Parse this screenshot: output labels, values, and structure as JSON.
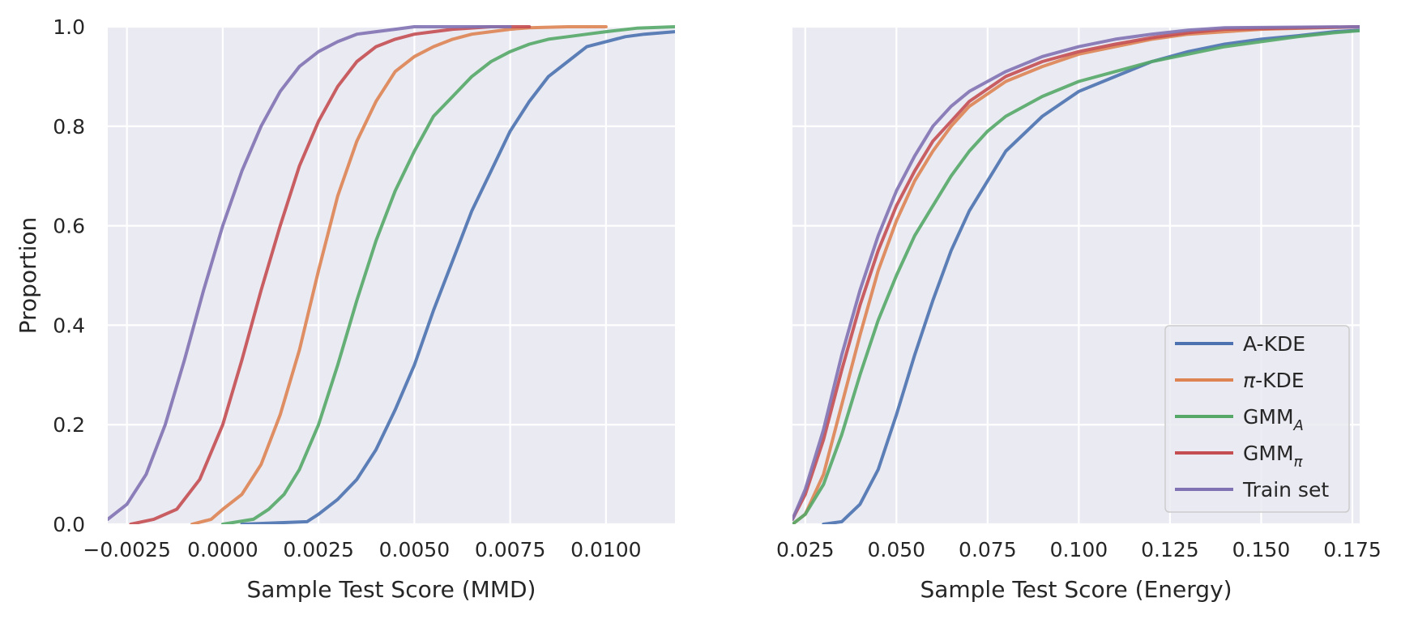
{
  "chart_data": [
    {
      "type": "line",
      "subtype": "ecdf",
      "xlabel": "Sample Test Score (MMD)",
      "ylabel": "Proportion",
      "xlim": [
        -0.003,
        0.0118
      ],
      "ylim": [
        0,
        1
      ],
      "xticks": [
        -0.0025,
        0.0,
        0.0025,
        0.005,
        0.0075,
        0.01
      ],
      "xtick_labels": [
        "−0.0025",
        "0.0000",
        "0.0025",
        "0.0050",
        "0.0075",
        "0.0100"
      ],
      "yticks": [
        0,
        0.2,
        0.4,
        0.6,
        0.8,
        1.0
      ],
      "ytick_labels": [
        "0.0",
        "0.2",
        "0.4",
        "0.6",
        "0.8",
        "1.0"
      ],
      "grid": true,
      "legend": false,
      "series": [
        {
          "name": "A-KDE",
          "color": "#4c72b0",
          "x": [
            0.0005,
            0.0022,
            0.0025,
            0.003,
            0.0035,
            0.004,
            0.0045,
            0.005,
            0.0055,
            0.006,
            0.0065,
            0.007,
            0.0075,
            0.008,
            0.0085,
            0.009,
            0.0095,
            0.01,
            0.0105,
            0.011,
            0.0118
          ],
          "y": [
            0.0,
            0.005,
            0.02,
            0.05,
            0.09,
            0.15,
            0.23,
            0.32,
            0.43,
            0.53,
            0.63,
            0.71,
            0.79,
            0.85,
            0.9,
            0.93,
            0.96,
            0.97,
            0.98,
            0.985,
            0.99
          ]
        },
        {
          "name": "π-KDE",
          "color": "#dd8452",
          "x": [
            -0.0008,
            -0.0003,
            0.0,
            0.0005,
            0.001,
            0.0015,
            0.002,
            0.0025,
            0.003,
            0.0035,
            0.004,
            0.0045,
            0.005,
            0.0055,
            0.006,
            0.0065,
            0.007,
            0.0075,
            0.008,
            0.009,
            0.01
          ],
          "y": [
            0.0,
            0.01,
            0.03,
            0.06,
            0.12,
            0.22,
            0.35,
            0.51,
            0.66,
            0.77,
            0.85,
            0.91,
            0.94,
            0.96,
            0.975,
            0.985,
            0.99,
            0.995,
            0.998,
            1.0,
            1.0
          ]
        },
        {
          "name": "GMM_A",
          "color": "#55a868",
          "x": [
            0.0,
            0.0008,
            0.0012,
            0.0016,
            0.002,
            0.0025,
            0.003,
            0.0035,
            0.004,
            0.0045,
            0.005,
            0.0055,
            0.006,
            0.0065,
            0.007,
            0.0075,
            0.008,
            0.0085,
            0.009,
            0.0095,
            0.01,
            0.0108,
            0.0118
          ],
          "y": [
            0.0,
            0.01,
            0.03,
            0.06,
            0.11,
            0.2,
            0.32,
            0.45,
            0.57,
            0.67,
            0.75,
            0.82,
            0.86,
            0.9,
            0.93,
            0.95,
            0.965,
            0.975,
            0.98,
            0.985,
            0.99,
            0.997,
            1.0
          ]
        },
        {
          "name": "GMM_π",
          "color": "#c44e52",
          "x": [
            -0.0024,
            -0.0018,
            -0.0012,
            -0.0006,
            0.0,
            0.0005,
            0.001,
            0.0015,
            0.002,
            0.0025,
            0.003,
            0.0035,
            0.004,
            0.0045,
            0.005,
            0.0055,
            0.006,
            0.007,
            0.008
          ],
          "y": [
            0.0,
            0.01,
            0.03,
            0.09,
            0.2,
            0.33,
            0.47,
            0.6,
            0.72,
            0.81,
            0.88,
            0.93,
            0.96,
            0.975,
            0.985,
            0.99,
            0.995,
            1.0,
            1.0
          ]
        },
        {
          "name": "Train set",
          "color": "#8172b3",
          "x": [
            -0.003,
            -0.0025,
            -0.002,
            -0.0015,
            -0.001,
            -0.0005,
            0.0,
            0.0005,
            0.001,
            0.0015,
            0.002,
            0.0025,
            0.003,
            0.0035,
            0.004,
            0.0045,
            0.005,
            0.006,
            0.0075
          ],
          "y": [
            0.01,
            0.04,
            0.1,
            0.2,
            0.33,
            0.47,
            0.6,
            0.71,
            0.8,
            0.87,
            0.92,
            0.95,
            0.97,
            0.985,
            0.99,
            0.995,
            1.0,
            1.0,
            1.0
          ]
        }
      ]
    },
    {
      "type": "line",
      "subtype": "ecdf",
      "xlabel": "Sample Test Score (Energy)",
      "ylabel": "",
      "xlim": [
        0.0215,
        0.177
      ],
      "ylim": [
        0,
        1
      ],
      "xticks": [
        0.025,
        0.05,
        0.075,
        0.1,
        0.125,
        0.15,
        0.175
      ],
      "xtick_labels": [
        "0.025",
        "0.050",
        "0.075",
        "0.100",
        "0.125",
        "0.150",
        "0.175"
      ],
      "yticks": [
        0,
        0.2,
        0.4,
        0.6,
        0.8,
        1.0
      ],
      "grid": true,
      "legend": true,
      "legend_location": "lower right",
      "legend_entries": [
        {
          "base": "A-KDE",
          "sub": "",
          "italic_prefix": ""
        },
        {
          "base": "-KDE",
          "sub": "",
          "italic_prefix": "π"
        },
        {
          "base": "GMM",
          "sub": "A",
          "italic_prefix": ""
        },
        {
          "base": "GMM",
          "sub": "π",
          "italic_prefix": ""
        },
        {
          "base": "Train set",
          "sub": "",
          "italic_prefix": ""
        }
      ],
      "series": [
        {
          "name": "A-KDE",
          "color": "#4c72b0",
          "x": [
            0.03,
            0.035,
            0.04,
            0.045,
            0.05,
            0.055,
            0.06,
            0.065,
            0.07,
            0.075,
            0.08,
            0.09,
            0.1,
            0.11,
            0.12,
            0.13,
            0.14,
            0.15,
            0.16,
            0.17,
            0.177
          ],
          "y": [
            0.0,
            0.005,
            0.04,
            0.11,
            0.22,
            0.34,
            0.45,
            0.55,
            0.63,
            0.69,
            0.75,
            0.82,
            0.87,
            0.9,
            0.93,
            0.95,
            0.965,
            0.975,
            0.982,
            0.99,
            0.993
          ]
        },
        {
          "name": "π-KDE",
          "color": "#dd8452",
          "x": [
            0.0215,
            0.025,
            0.03,
            0.035,
            0.04,
            0.045,
            0.05,
            0.055,
            0.06,
            0.065,
            0.07,
            0.08,
            0.09,
            0.1,
            0.11,
            0.12,
            0.13,
            0.14,
            0.15,
            0.177
          ],
          "y": [
            0.0,
            0.02,
            0.1,
            0.24,
            0.38,
            0.51,
            0.61,
            0.69,
            0.75,
            0.8,
            0.84,
            0.89,
            0.92,
            0.945,
            0.96,
            0.975,
            0.985,
            0.99,
            0.995,
            1.0
          ]
        },
        {
          "name": "GMM_A",
          "color": "#55a868",
          "x": [
            0.0215,
            0.025,
            0.03,
            0.035,
            0.04,
            0.045,
            0.05,
            0.055,
            0.06,
            0.065,
            0.07,
            0.075,
            0.08,
            0.09,
            0.1,
            0.11,
            0.12,
            0.13,
            0.14,
            0.15,
            0.16,
            0.17,
            0.177
          ],
          "y": [
            0.0,
            0.02,
            0.08,
            0.18,
            0.3,
            0.41,
            0.5,
            0.58,
            0.64,
            0.7,
            0.75,
            0.79,
            0.82,
            0.86,
            0.89,
            0.91,
            0.93,
            0.945,
            0.96,
            0.97,
            0.98,
            0.988,
            0.992
          ]
        },
        {
          "name": "GMM_π",
          "color": "#c44e52",
          "x": [
            0.0215,
            0.025,
            0.03,
            0.035,
            0.04,
            0.045,
            0.05,
            0.055,
            0.06,
            0.065,
            0.07,
            0.08,
            0.09,
            0.1,
            0.11,
            0.12,
            0.13,
            0.14,
            0.177
          ],
          "y": [
            0.01,
            0.06,
            0.17,
            0.31,
            0.44,
            0.55,
            0.64,
            0.71,
            0.77,
            0.81,
            0.85,
            0.9,
            0.93,
            0.95,
            0.965,
            0.978,
            0.988,
            0.995,
            1.0
          ]
        },
        {
          "name": "Train set",
          "color": "#8172b3",
          "x": [
            0.0215,
            0.025,
            0.03,
            0.035,
            0.04,
            0.045,
            0.05,
            0.055,
            0.06,
            0.065,
            0.07,
            0.08,
            0.09,
            0.1,
            0.11,
            0.12,
            0.13,
            0.14,
            0.177
          ],
          "y": [
            0.01,
            0.07,
            0.19,
            0.34,
            0.47,
            0.58,
            0.67,
            0.74,
            0.8,
            0.84,
            0.87,
            0.91,
            0.94,
            0.96,
            0.975,
            0.985,
            0.993,
            0.998,
            1.0
          ]
        }
      ]
    }
  ]
}
